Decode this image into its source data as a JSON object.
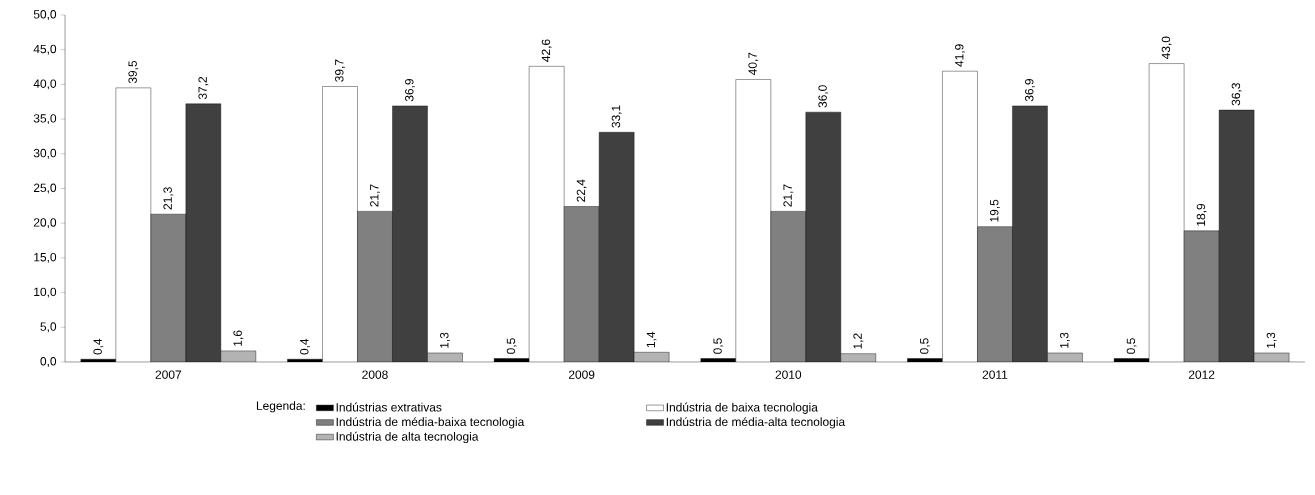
{
  "chart_data": {
    "type": "bar",
    "categories": [
      "2007",
      "2008",
      "2009",
      "2010",
      "2011",
      "2012"
    ],
    "legend_title": "Legenda:",
    "legend": "bottom",
    "ylim": [
      0,
      50
    ],
    "yticks": [
      {
        "value": 0,
        "label": "0,0"
      },
      {
        "value": 5,
        "label": "5,0"
      },
      {
        "value": 10,
        "label": "10,0"
      },
      {
        "value": 15,
        "label": "15,0"
      },
      {
        "value": 20,
        "label": "20,0"
      },
      {
        "value": 25,
        "label": "25,0"
      },
      {
        "value": 30,
        "label": "30,0"
      },
      {
        "value": 35,
        "label": "35,0"
      },
      {
        "value": 40,
        "label": "40,0"
      },
      {
        "value": 45,
        "label": "45,0"
      },
      {
        "value": 50,
        "label": "50,0"
      }
    ],
    "series": [
      {
        "name": "Indústrias extrativas",
        "color": "#000000",
        "values": [
          0.4,
          0.4,
          0.5,
          0.5,
          0.5,
          0.5
        ],
        "value_labels": [
          "0,4",
          "0,4",
          "0,5",
          "0,5",
          "0,5",
          "0,5"
        ]
      },
      {
        "name": "Indústria de baixa tecnologia",
        "color": "#ffffff",
        "values": [
          39.5,
          39.7,
          42.6,
          40.7,
          41.9,
          43.0
        ],
        "value_labels": [
          "39,5",
          "39,7",
          "42,6",
          "40,7",
          "41,9",
          "43,0"
        ]
      },
      {
        "name": "Indústria de média-baixa tecnologia",
        "color": "#808080",
        "values": [
          21.3,
          21.7,
          22.4,
          21.7,
          19.5,
          18.9
        ],
        "value_labels": [
          "21,3",
          "21,7",
          "22,4",
          "21,7",
          "19,5",
          "18,9"
        ]
      },
      {
        "name": "Indústria de média-alta tecnologia",
        "color": "#404040",
        "values": [
          37.2,
          36.9,
          33.1,
          36.0,
          36.9,
          36.3
        ],
        "value_labels": [
          "37,2",
          "36,9",
          "33,1",
          "36,0",
          "36,9",
          "36,3"
        ]
      },
      {
        "name": "Indústria de alta tecnologia",
        "color": "#b3b3b3",
        "values": [
          1.6,
          1.3,
          1.4,
          1.2,
          1.3,
          1.3
        ],
        "value_labels": [
          "1,6",
          "1,3",
          "1,4",
          "1,2",
          "1,3",
          "1,3"
        ]
      }
    ]
  }
}
